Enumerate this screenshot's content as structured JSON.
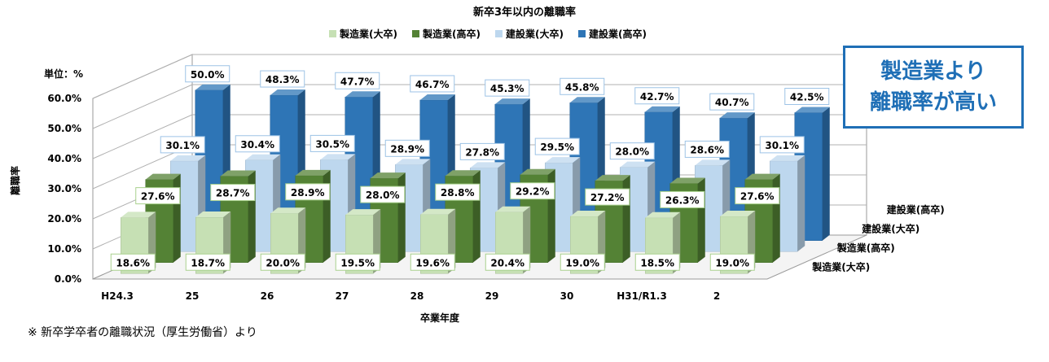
{
  "title": "新卒3年以内の離職率",
  "unit_label": "単位：%",
  "callout": {
    "line1": "製造業より",
    "line2": "離職率が高い"
  },
  "source_note": "※ 新卒学卒者の離職状況（厚生労働省）より",
  "colors": {
    "mfg_univ": "#c6e0b4",
    "mfg_hs": "#548235",
    "con_univ": "#bdd7ee",
    "con_hs": "#2e75b6",
    "accent": "#1f6fb6"
  },
  "chart_data": {
    "type": "bar",
    "title": "新卒3年以内の離職率",
    "xlabel": "卒業年度",
    "ylabel": "離職率",
    "ylim": [
      0,
      60
    ],
    "yticks": [
      "0.0%",
      "10.0%",
      "20.0%",
      "30.0%",
      "40.0%",
      "50.0%",
      "60.0%"
    ],
    "grid": true,
    "legend_position": "top",
    "categories": [
      "H24.3",
      "25",
      "26",
      "27",
      "28",
      "29",
      "30",
      "H31/R1.3",
      "2"
    ],
    "depth_labels": [
      "製造業(大卒)",
      "製造業(高卒)",
      "建設業(大卒)",
      "建設業(高卒)"
    ],
    "series": [
      {
        "name": "製造業(大卒)",
        "values": [
          18.6,
          18.7,
          20.0,
          19.5,
          19.6,
          20.4,
          19.0,
          18.5,
          19.0
        ],
        "labels": [
          "18.6%",
          "18.7%",
          "20.0%",
          "19.5%",
          "19.6%",
          "20.4%",
          "19.0%",
          "18.5%",
          "19.0%"
        ]
      },
      {
        "name": "製造業(高卒)",
        "values": [
          27.6,
          28.7,
          28.9,
          28.0,
          28.8,
          29.2,
          27.2,
          26.3,
          27.6
        ],
        "labels": [
          "27.6%",
          "28.7%",
          "28.9%",
          "28.0%",
          "28.8%",
          "29.2%",
          "27.2%",
          "26.3%",
          "27.6%"
        ]
      },
      {
        "name": "建設業(大卒)",
        "values": [
          30.1,
          30.4,
          30.5,
          28.9,
          27.8,
          29.5,
          28.0,
          28.6,
          30.1
        ],
        "labels": [
          "30.1%",
          "30.4%",
          "30.5%",
          "28.9%",
          "27.8%",
          "29.5%",
          "28.0%",
          "28.6%",
          "30.1%"
        ]
      },
      {
        "name": "建設業(高卒)",
        "values": [
          50.0,
          48.3,
          47.7,
          46.7,
          45.3,
          45.8,
          42.7,
          40.7,
          42.5
        ],
        "labels": [
          "50.0%",
          "48.3%",
          "47.7%",
          "46.7%",
          "45.3%",
          "45.8%",
          "42.7%",
          "40.7%",
          "42.5%"
        ]
      }
    ]
  }
}
